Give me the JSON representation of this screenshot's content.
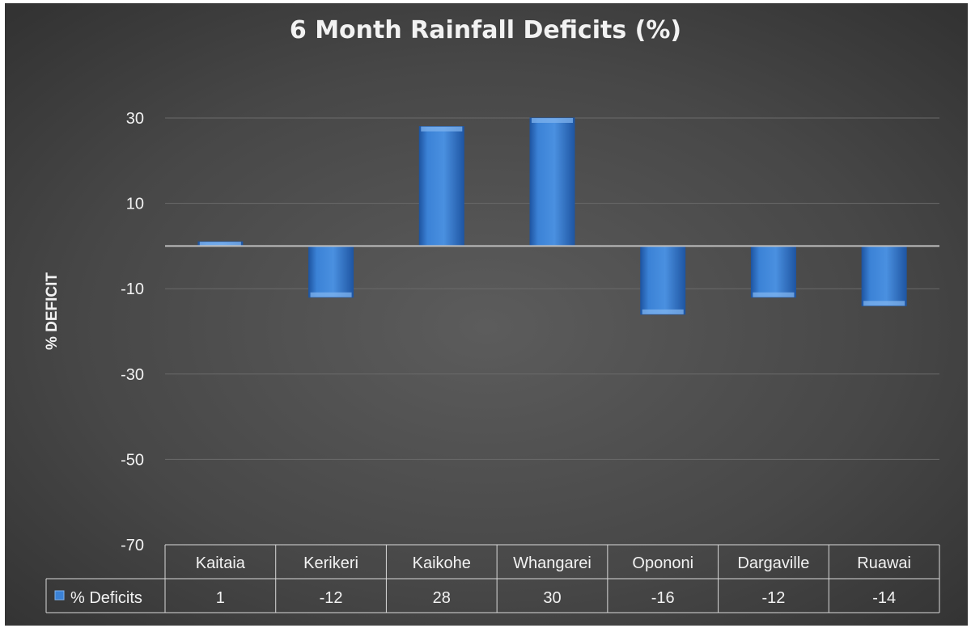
{
  "colors": {
    "bar": "#3b82d6",
    "bar_dark": "#1f56a3",
    "bar_light": "#7fb3ee",
    "text": "#f2f2f2",
    "grid": "#6a6a6a",
    "zero_line": "#bfbfbf",
    "table_border": "#d9d9d9"
  },
  "chart_data": {
    "type": "bar",
    "title": "6 Month Rainfall Deficits (%)",
    "ylabel": "% DEFICIT",
    "xlabel": "",
    "categories": [
      "Kaitaia",
      "Kerikeri",
      "Kaikohe",
      "Whangarei",
      "Opononi",
      "Dargaville",
      "Ruawai"
    ],
    "series": [
      {
        "name": "% Deficits",
        "values": [
          1,
          -12,
          28,
          30,
          -16,
          -12,
          -14
        ]
      }
    ],
    "data_labels": [
      "1",
      "-12",
      "28",
      "30",
      "-16",
      "-12",
      "-14"
    ],
    "y_ticks": [
      30,
      10,
      -10,
      -30,
      -50,
      -70
    ],
    "y_tick_labels": [
      "30",
      "10",
      "-10",
      "-30",
      "-50",
      "-70"
    ],
    "ylim": [
      -70,
      30
    ],
    "grid": true,
    "legend": "data-table",
    "data_table": true
  }
}
